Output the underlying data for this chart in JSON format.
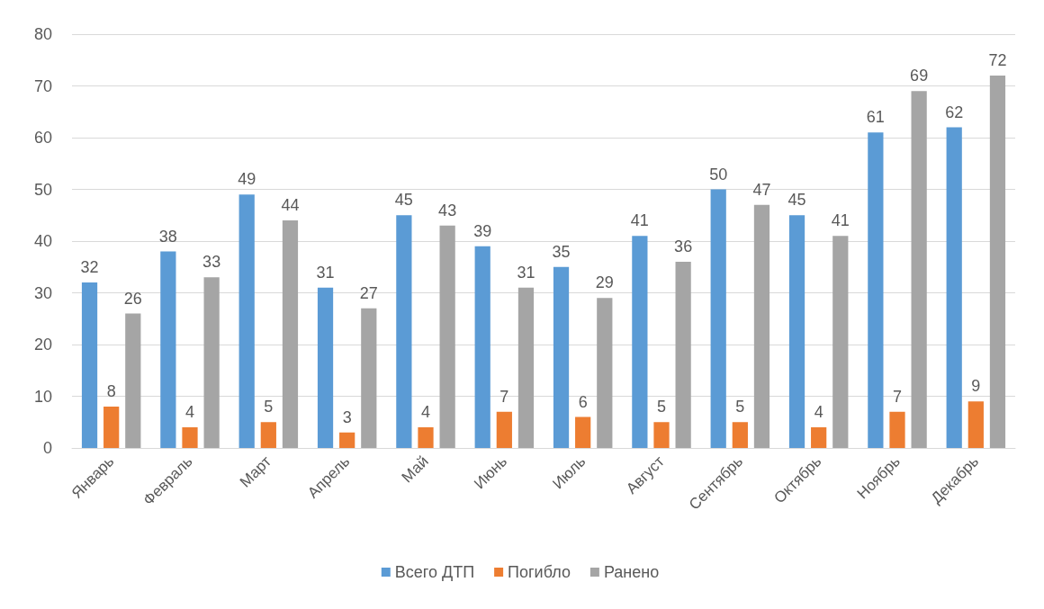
{
  "chart_data": {
    "type": "bar",
    "categories": [
      "Январь",
      "Февраль",
      "Март",
      "Апрель",
      "Май",
      "Июнь",
      "Июль",
      "Август",
      "Сентябрь",
      "Октябрь",
      "Ноябрь",
      "Декабрь"
    ],
    "series": [
      {
        "name": "Всего ДТП",
        "color": "#5b9bd5",
        "values": [
          32,
          38,
          49,
          31,
          45,
          39,
          35,
          41,
          50,
          45,
          61,
          62
        ]
      },
      {
        "name": "Погибло",
        "color": "#ed7d31",
        "values": [
          8,
          4,
          5,
          3,
          4,
          7,
          6,
          5,
          5,
          4,
          7,
          9
        ]
      },
      {
        "name": "Ранено",
        "color": "#a5a5a5",
        "values": [
          26,
          33,
          44,
          27,
          43,
          31,
          29,
          36,
          47,
          41,
          69,
          72
        ]
      }
    ],
    "ylim": [
      0,
      80
    ],
    "yticks": [
      0,
      10,
      20,
      30,
      40,
      50,
      60,
      70,
      80
    ],
    "grid": "y",
    "legend": "bottom",
    "data_labels": true
  }
}
